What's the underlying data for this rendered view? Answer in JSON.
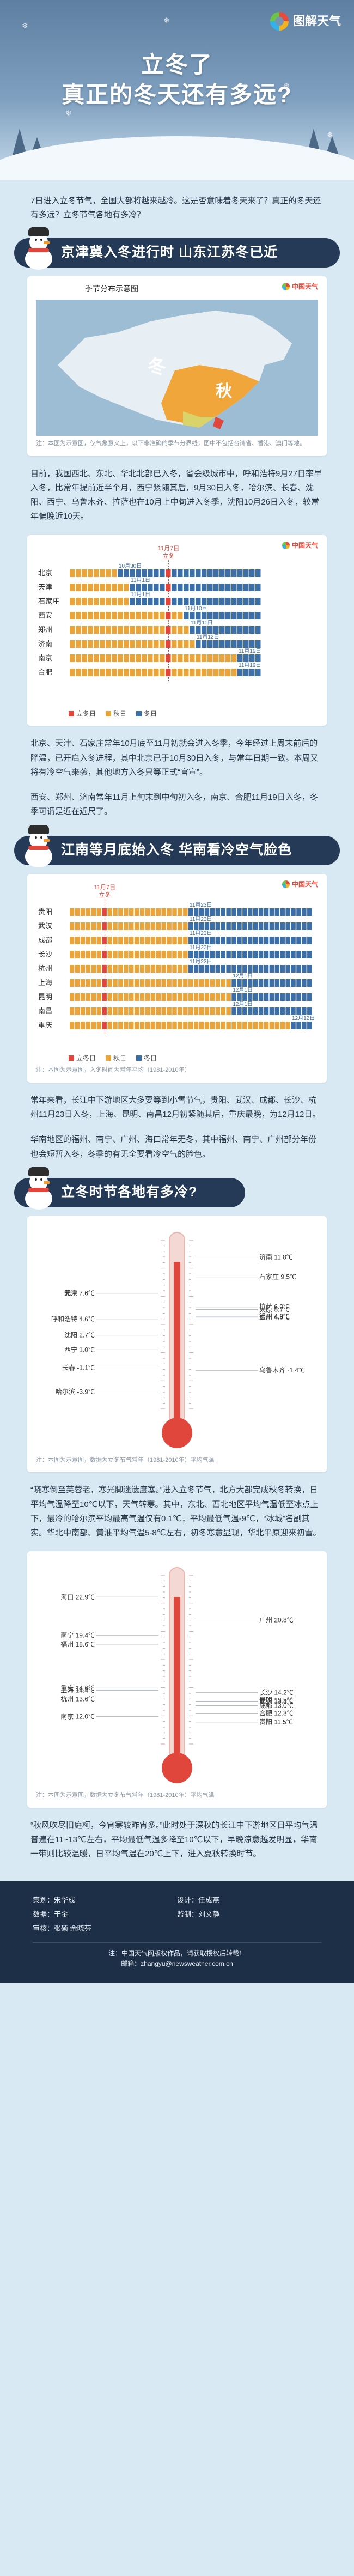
{
  "header": {
    "logo_text": "图解天气",
    "title_line1": "立冬了",
    "title_line2": "真正的冬天还有多远?"
  },
  "intro": "7日进入立冬节气，全国大部将越来越冷。这是否意味着冬天来了？真正的冬天还有多远？立冬节气各地有多冷？",
  "section1": {
    "banner": "京津冀入冬进行时 山东江苏冬已近",
    "map_card": {
      "title": "季节分布示意图",
      "logo": "中国天气",
      "label_winter": "冬",
      "label_autumn": "秋",
      "caption": "注：本图为示意图，仅气象意义上，以下非准确的季节分界线，图中不包括台湾省、香港、澳门等地。"
    },
    "para1": "目前，我国西北、东北、华北北部已入冬，省会级城市中，呼和浩特9月27日率早入冬，比常年提前近半个月，西宁紧随其后，9月30日入冬，哈尔滨、长春、沈阳、西宁、乌鲁木齐、拉萨也在10月上中旬进入冬季，沈阳10月26日入冬，较常年偏晚近10天。",
    "chart_card": {
      "logo": "中国天气",
      "marker_top": "11月7日",
      "marker_sub": "立冬"
    },
    "para2": "北京、天津、石家庄常年10月底至11月初就会进入冬季，今年经过上周末前后的降温，已开启入冬进程，其中北京已于10月30日入冬，与常年日期一致。本周又将有冷空气来袭，其他地方入冬只等正式“官宣”。",
    "para3": "西安、郑州、济南常年11月上旬末到中旬初入冬，南京、合肥11月19日入冬，冬季可谓是近在近尺了。"
  },
  "section2": {
    "banner": "江南等月底始入冬 华南看冷空气脸色",
    "chart_card": {
      "logo": "中国天气",
      "marker_top": "11月7日",
      "marker_sub": "立冬",
      "caption": "注：本图为示意图，入冬时间为常年平均（1981-2010年）"
    },
    "para1": "常年来看，长江中下游地区大多要等到小雪节气，贵阳、武汉、成都、长沙、杭州11月23日入冬，上海、昆明、南昌12月初紧随其后，重庆最晚，为12月12日。",
    "para2": "华南地区的福州、南宁、广州、海口常年无冬，其中福州、南宁、广州部分年份也会短暂入冬，冬季的有无全要看冷空气的脸色。"
  },
  "section3": {
    "banner": "立冬时节各地有多冷?",
    "thermo1_caption": "注：本图为示意图，数据为立冬节气常年（1981-2010年）平均气温",
    "para1": "“晓寒倒至芙蓉老，寒光脚迷遗度塞。”进入立冬节气，北方大部完成秋冬转换，日平均气温降至10℃以下，天气转寒。其中，东北、西北地区平均气温低至冰点上下，最冷的哈尔滨平均最高气温仅有0.1℃，平均最低气温-9℃，“冰城”名副其实。华北中南部、黄淮平均气温5-8℃左右，初冬寒意显现，华北平原迎来初雪。",
    "thermo2_caption": "注：本图为示意图，数据为立冬节气常年（1981-2010年）平均气温",
    "para2": "“秋风吹尽旧庭柯，今宵寒较昨宵多。”此时处于深秋的长江中下游地区日平均气温普遍在11~13℃左右，平均最低气温多降至10℃以下，早晚凉意越发明显，华南一带则比较温暖，日平均气温在20℃上下，进入夏秋转换时节。"
  },
  "credits": {
    "planner_label": "策划：",
    "planner": "宋华成",
    "design_label": "设计：",
    "design": "任成燕",
    "data_label": "数据：",
    "data": "于金",
    "editor_label": "监制：",
    "editor": "刘文静",
    "review_label": "审核：",
    "review": "张硕  余晓芬",
    "note1": "注：中国天气网版权作品，请获取授权后转载！",
    "note2": "邮箱：zhangyu@newsweather.com.cn"
  },
  "chart_data": [
    {
      "type": "timeline",
      "title": "北方城市入冬时间",
      "dates_shown": [
        "10月26日",
        "10月30日",
        "11月7日",
        "11月19日"
      ],
      "rows": [
        {
          "city": "北京",
          "winter_start": "10月30日",
          "label": "10月30日"
        },
        {
          "city": "天津",
          "winter_start": "",
          "label": "11月1日"
        },
        {
          "city": "石家庄",
          "winter_start": "",
          "label": "11月1日"
        },
        {
          "city": "西安",
          "winter_start": "",
          "label": "11月10日"
        },
        {
          "city": "郑州",
          "winter_start": "",
          "label": "11月11日"
        },
        {
          "city": "济南",
          "winter_start": "",
          "label": "11月12日"
        },
        {
          "city": "南京",
          "winter_start": "",
          "label": "11月19日"
        },
        {
          "city": "合肥",
          "winter_start": "",
          "label": "11月19日"
        }
      ],
      "legend": [
        "立冬日",
        "秋日",
        "冬日"
      ],
      "colors": {
        "lidong": "#e0463b",
        "autumn": "#e9a43c",
        "winter": "#3c6ea8"
      }
    },
    {
      "type": "timeline",
      "title": "南方城市入冬时间",
      "rows": [
        {
          "city": "贵阳",
          "label": "11月23日"
        },
        {
          "city": "武汉",
          "label": "11月23日"
        },
        {
          "city": "成都",
          "label": "11月23日"
        },
        {
          "city": "长沙",
          "label": "11月23日"
        },
        {
          "city": "杭州",
          "label": "11月23日"
        },
        {
          "city": "上海",
          "label": "12月1日"
        },
        {
          "city": "昆明",
          "label": "12月1日"
        },
        {
          "city": "南昌",
          "label": "12月1日"
        },
        {
          "city": "重庆",
          "label": "12月12日"
        }
      ],
      "legend": [
        "立冬日",
        "秋日",
        "冬日"
      ],
      "colors": {
        "lidong": "#e0463b",
        "autumn": "#e9a43c",
        "winter": "#3c6ea8"
      }
    },
    {
      "type": "thermometer",
      "title": "北方城市立冬节气平均气温",
      "left": [
        {
          "city": "呼和浩特",
          "value": "4.6℃"
        },
        {
          "city": "北京",
          "value": "7.6℃"
        },
        {
          "city": "天津",
          "value": "7.6℃"
        },
        {
          "city": "西宁",
          "value": "1.0℃"
        },
        {
          "city": "沈阳",
          "value": "2.7℃"
        },
        {
          "city": "长春",
          "value": "-1.1℃"
        },
        {
          "city": "哈尔滨",
          "value": "-3.9℃"
        }
      ],
      "right": [
        {
          "city": "济南",
          "value": "11.8℃"
        },
        {
          "city": "石家庄",
          "value": "9.5℃"
        },
        {
          "city": "太原",
          "value": "5.7℃"
        },
        {
          "city": "兰州",
          "value": "4.8℃"
        },
        {
          "city": "银川",
          "value": "4.9℃"
        },
        {
          "city": "乌鲁木齐",
          "value": "-1.4℃"
        },
        {
          "city": "拉萨",
          "value": "6.0℃"
        }
      ]
    },
    {
      "type": "thermometer",
      "title": "南方城市立冬节气平均气温",
      "left": [
        {
          "city": "海口",
          "value": "22.9℃"
        },
        {
          "city": "南宁",
          "value": "19.4℃"
        },
        {
          "city": "福州",
          "value": "18.6℃"
        },
        {
          "city": "重庆",
          "value": "14.6℃"
        },
        {
          "city": "上海",
          "value": "14.4℃"
        },
        {
          "city": "杭州",
          "value": "13.6℃"
        },
        {
          "city": "南京",
          "value": "12.0℃"
        }
      ],
      "right": [
        {
          "city": "广州",
          "value": "20.8℃"
        },
        {
          "city": "昆明",
          "value": "13.5℃"
        },
        {
          "city": "长沙",
          "value": "14.2℃"
        },
        {
          "city": "武汉",
          "value": "13.4℃"
        },
        {
          "city": "成都",
          "value": "13.0℃"
        },
        {
          "city": "合肥",
          "value": "12.3℃"
        },
        {
          "city": "贵阳",
          "value": "11.5℃"
        }
      ]
    }
  ]
}
